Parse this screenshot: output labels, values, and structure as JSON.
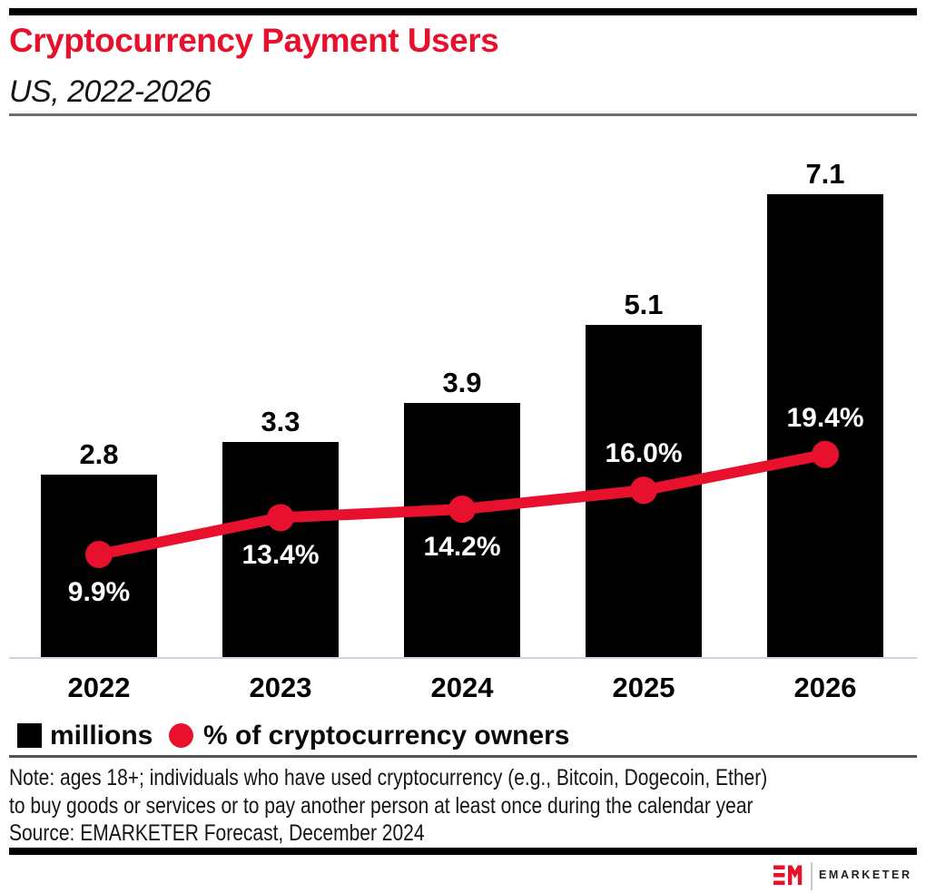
{
  "header": {
    "title": "Cryptocurrency Payment Users",
    "subtitle": "US, 2022-2026"
  },
  "chart_data": {
    "type": "bar",
    "title": "Cryptocurrency Payment Users",
    "subtitle": "US, 2022-2026",
    "categories": [
      "2022",
      "2023",
      "2024",
      "2025",
      "2026"
    ],
    "series": [
      {
        "name": "millions",
        "type": "bar",
        "values": [
          2.8,
          3.3,
          3.9,
          5.1,
          7.1
        ],
        "labels": [
          "2.8",
          "3.3",
          "3.9",
          "5.1",
          "7.1"
        ],
        "color": "#000000"
      },
      {
        "name": "% of cryptocurrency owners",
        "type": "line",
        "values": [
          9.9,
          13.4,
          14.2,
          16.0,
          19.4
        ],
        "labels": [
          "9.9%",
          "13.4%",
          "14.2%",
          "16.0%",
          "19.4%"
        ],
        "label_positions": [
          "below",
          "below",
          "below",
          "above",
          "above"
        ],
        "color": "#e8112d"
      }
    ],
    "legend_position": "bottom",
    "grid": false,
    "ylim_bars": [
      0,
      7.1
    ],
    "ylim_line_pct": [
      9.9,
      19.4
    ]
  },
  "legend": {
    "items": [
      {
        "label": "millions",
        "swatch": "square",
        "color": "#000000"
      },
      {
        "label": "% of cryptocurrency owners",
        "swatch": "circle",
        "color": "#e8112d"
      }
    ]
  },
  "notes": {
    "line1": "Note: ages 18+; individuals who have used cryptocurrency (e.g., Bitcoin, Dogecoin, Ether)",
    "line2": "to buy goods or services or to pay another person at least once during the calendar year",
    "source": "Source: EMARKETER Forecast, December 2024"
  },
  "footer": {
    "brand": "EMARKETER"
  },
  "colors": {
    "brand_red": "#e8112d",
    "bar_black": "#000000",
    "baseline": "#ccd6e3",
    "header_rule": "#6e6e6e",
    "note_rule": "#535353"
  }
}
